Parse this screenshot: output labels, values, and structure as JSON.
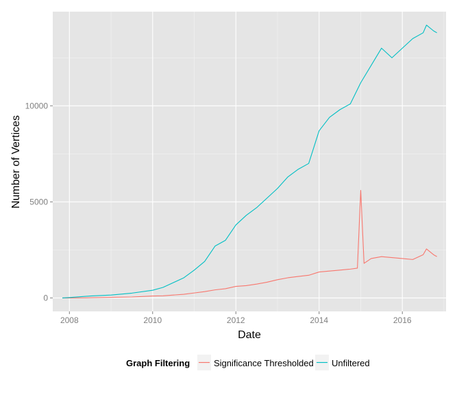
{
  "chart_data": {
    "type": "line",
    "xlabel": "Date",
    "ylabel": "Number of Vertices",
    "xlim": [
      2007.6,
      2017.05
    ],
    "ylim": [
      -700,
      14900
    ],
    "x_ticks": [
      2008,
      2010,
      2012,
      2014,
      2016
    ],
    "x_tick_labels": [
      "2008",
      "2010",
      "2012",
      "2014",
      "2016"
    ],
    "y_ticks": [
      0,
      5000,
      10000
    ],
    "y_tick_labels": [
      "0",
      "5000",
      "10000"
    ],
    "grid": true,
    "legend": {
      "title": "Graph Filtering",
      "position": "bottom"
    },
    "series": [
      {
        "name": "Significance Thresholded",
        "color": "#f8766d",
        "points": [
          [
            2007.83,
            0
          ],
          [
            2008.0,
            0
          ],
          [
            2008.5,
            10
          ],
          [
            2009.0,
            30
          ],
          [
            2009.5,
            50
          ],
          [
            2010.0,
            100
          ],
          [
            2010.25,
            110
          ],
          [
            2010.5,
            150
          ],
          [
            2010.75,
            190
          ],
          [
            2011.0,
            260
          ],
          [
            2011.25,
            330
          ],
          [
            2011.5,
            420
          ],
          [
            2011.75,
            480
          ],
          [
            2012.0,
            600
          ],
          [
            2012.25,
            640
          ],
          [
            2012.5,
            720
          ],
          [
            2012.75,
            820
          ],
          [
            2013.0,
            950
          ],
          [
            2013.25,
            1050
          ],
          [
            2013.5,
            1120
          ],
          [
            2013.75,
            1180
          ],
          [
            2014.0,
            1350
          ],
          [
            2014.25,
            1400
          ],
          [
            2014.5,
            1450
          ],
          [
            2014.75,
            1500
          ],
          [
            2014.92,
            1550
          ],
          [
            2015.0,
            5600
          ],
          [
            2015.08,
            1800
          ],
          [
            2015.25,
            2050
          ],
          [
            2015.5,
            2150
          ],
          [
            2015.75,
            2100
          ],
          [
            2016.0,
            2050
          ],
          [
            2016.25,
            2000
          ],
          [
            2016.5,
            2250
          ],
          [
            2016.58,
            2550
          ],
          [
            2016.75,
            2250
          ],
          [
            2016.83,
            2150
          ]
        ]
      },
      {
        "name": "Unfiltered",
        "color": "#00bfc4",
        "points": [
          [
            2007.83,
            0
          ],
          [
            2008.0,
            20
          ],
          [
            2008.5,
            100
          ],
          [
            2009.0,
            150
          ],
          [
            2009.5,
            250
          ],
          [
            2010.0,
            400
          ],
          [
            2010.25,
            550
          ],
          [
            2010.5,
            800
          ],
          [
            2010.75,
            1050
          ],
          [
            2011.0,
            1450
          ],
          [
            2011.25,
            1900
          ],
          [
            2011.5,
            2700
          ],
          [
            2011.75,
            3000
          ],
          [
            2012.0,
            3800
          ],
          [
            2012.25,
            4300
          ],
          [
            2012.5,
            4700
          ],
          [
            2012.75,
            5200
          ],
          [
            2013.0,
            5700
          ],
          [
            2013.25,
            6300
          ],
          [
            2013.5,
            6700
          ],
          [
            2013.75,
            7000
          ],
          [
            2014.0,
            8700
          ],
          [
            2014.25,
            9400
          ],
          [
            2014.5,
            9800
          ],
          [
            2014.75,
            10100
          ],
          [
            2015.0,
            11200
          ],
          [
            2015.25,
            12100
          ],
          [
            2015.5,
            13000
          ],
          [
            2015.75,
            12500
          ],
          [
            2016.0,
            13000
          ],
          [
            2016.25,
            13500
          ],
          [
            2016.5,
            13800
          ],
          [
            2016.58,
            14200
          ],
          [
            2016.75,
            13900
          ],
          [
            2016.83,
            13800
          ]
        ]
      }
    ]
  }
}
